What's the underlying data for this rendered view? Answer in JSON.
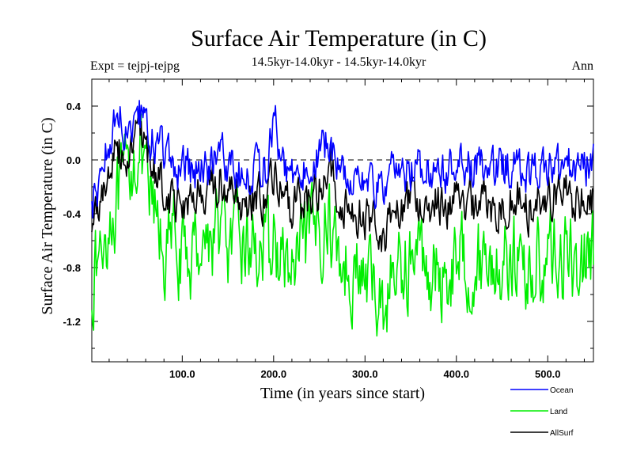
{
  "chart_data": {
    "type": "line",
    "title": "Surface Air Temperature (in C)",
    "subtitle": "14.5kyr-14.0kyr - 14.5kyr-14.0kyr",
    "left_label": "Expt = tejpj-tejpg",
    "right_label": "Ann",
    "xlabel": "Time (in years since start)",
    "ylabel": "Surface Air Temperature (in C)",
    "xlim": [
      1,
      550
    ],
    "ylim": [
      -1.5,
      0.6
    ],
    "x_ticks": [
      100,
      200,
      300,
      400,
      500
    ],
    "x_tick_labels": [
      "100.0",
      "200.0",
      "300.0",
      "400.0",
      "500.0"
    ],
    "y_ticks": [
      0.4,
      0.0,
      -0.4,
      -0.8,
      -1.2
    ],
    "y_tick_labels": [
      "0.4",
      "0.0",
      "-0.4",
      "-0.8",
      "-1.2"
    ],
    "reference_line": 0.0,
    "x_sampling": "one point per year, years 1-550",
    "series": [
      {
        "name": "Ocean",
        "color": "#0000ff",
        "values_every_10_years": [
          -0.35,
          -0.1,
          0.2,
          0.28,
          0.25,
          0.42,
          0.15,
          0.1,
          0.05,
          -0.1,
          -0.08,
          -0.05,
          -0.1,
          -0.06,
          0.1,
          -0.05,
          -0.08,
          -0.1,
          -0.05,
          -0.05,
          0.3,
          -0.1,
          -0.12,
          -0.1,
          -0.05,
          0.05,
          0.15,
          -0.05,
          -0.1,
          -0.12,
          -0.15,
          -0.2,
          -0.25,
          -0.1,
          -0.12,
          -0.08,
          -0.05,
          -0.08,
          -0.05,
          -0.1,
          -0.05,
          -0.05,
          -0.08,
          -0.05,
          -0.1,
          -0.05,
          -0.05,
          -0.08,
          -0.1,
          -0.05,
          -0.05,
          -0.05,
          -0.05,
          -0.08,
          -0.05,
          -0.05
        ]
      },
      {
        "name": "Land",
        "color": "#00ee00",
        "values_every_10_years": [
          -0.9,
          -0.7,
          -0.4,
          -0.3,
          -0.1,
          0.12,
          -0.25,
          -0.45,
          -0.7,
          -0.55,
          -0.8,
          -0.7,
          -0.55,
          -0.6,
          -0.45,
          -0.7,
          -0.6,
          -0.65,
          -0.6,
          -0.75,
          -0.6,
          -0.8,
          -0.85,
          -0.7,
          -0.6,
          -0.5,
          -0.45,
          -0.7,
          -0.8,
          -0.85,
          -0.9,
          -0.95,
          -1.1,
          -0.85,
          -0.8,
          -0.75,
          -0.7,
          -0.8,
          -0.9,
          -0.85,
          -0.7,
          -0.75,
          -0.8,
          -0.7,
          -0.8,
          -0.75,
          -0.7,
          -0.8,
          -0.85,
          -0.75,
          -0.7,
          -0.7,
          -0.75,
          -0.8,
          -0.7,
          -0.7
        ]
      },
      {
        "name": "AllSurf",
        "color": "#000000",
        "values_every_10_years": [
          -0.5,
          -0.25,
          -0.05,
          0.05,
          0.05,
          0.28,
          -0.02,
          -0.08,
          -0.2,
          -0.3,
          -0.3,
          -0.28,
          -0.3,
          -0.26,
          -0.15,
          -0.28,
          -0.3,
          -0.32,
          -0.28,
          -0.3,
          -0.1,
          -0.35,
          -0.38,
          -0.32,
          -0.25,
          -0.18,
          0.0,
          -0.28,
          -0.35,
          -0.38,
          -0.42,
          -0.45,
          -0.55,
          -0.35,
          -0.35,
          -0.3,
          -0.28,
          -0.32,
          -0.3,
          -0.35,
          -0.28,
          -0.3,
          -0.32,
          -0.28,
          -0.35,
          -0.3,
          -0.28,
          -0.32,
          -0.36,
          -0.3,
          -0.28,
          -0.28,
          -0.3,
          -0.32,
          -0.28,
          -0.28
        ]
      }
    ],
    "legend": [
      "Ocean",
      "Land",
      "AllSurf"
    ],
    "legend_position": "bottom-right"
  }
}
